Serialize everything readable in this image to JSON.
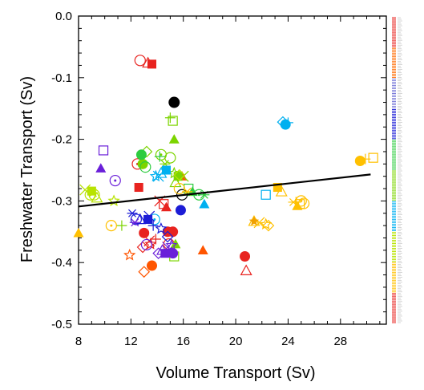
{
  "chart_data": {
    "type": "scatter",
    "xlabel": "Volume Transport (Sv)",
    "ylabel": "Freshwater Transport (Sv)",
    "xlim": [
      8,
      31.5
    ],
    "ylim": [
      -0.5,
      0.0
    ],
    "xticks": [
      "8",
      "12",
      "16",
      "20",
      "24",
      "28"
    ],
    "yticks": [
      "0.0",
      "-0.1",
      "-0.2",
      "-0.3",
      "-0.4",
      "-0.5"
    ],
    "x_tick_values": [
      8,
      12,
      16,
      20,
      24,
      28
    ],
    "y_tick_values": [
      0.0,
      -0.1,
      -0.2,
      -0.3,
      -0.4,
      -0.5
    ],
    "regression_line": {
      "x": [
        8,
        30.3
      ],
      "y": [
        -0.309,
        -0.257
      ],
      "color": "#000000"
    },
    "series": [
      {
        "color": "#e8231f",
        "marker": "mixed",
        "points": [
          [
            12.7,
            -0.072
          ],
          [
            13.3,
            -0.076
          ],
          [
            13.6,
            -0.078
          ],
          [
            13.4,
            -0.365
          ],
          [
            13.5,
            -0.37
          ],
          [
            12.9,
            -0.375
          ],
          [
            13.0,
            -0.352
          ],
          [
            13.9,
            -0.362
          ],
          [
            14.5,
            -0.305
          ],
          [
            14.7,
            -0.31
          ],
          [
            12.5,
            -0.24
          ],
          [
            15.0,
            -0.35
          ],
          [
            14.9,
            -0.37
          ],
          [
            20.8,
            -0.413
          ],
          [
            12.6,
            -0.278
          ],
          [
            14.2,
            -0.3
          ]
        ]
      },
      {
        "color": "#e8231f",
        "marker": "filled-circle",
        "points": [
          [
            20.7,
            -0.39
          ],
          [
            14.8,
            -0.35
          ],
          [
            15.2,
            -0.35
          ]
        ]
      },
      {
        "color": "#ff5500",
        "marker": "filled-triangle",
        "points": [
          [
            17.5,
            -0.38
          ],
          [
            15.9,
            -0.26
          ]
        ]
      },
      {
        "color": "#ff5500",
        "marker": "mixed",
        "points": [
          [
            11.9,
            -0.388
          ],
          [
            13.0,
            -0.415
          ],
          [
            13.6,
            -0.405
          ]
        ]
      },
      {
        "color": "#000000",
        "marker": "filled-circle",
        "points": [
          [
            15.3,
            -0.14
          ]
        ]
      },
      {
        "color": "#000000",
        "marker": "open-circle",
        "points": [
          [
            15.9,
            -0.29
          ]
        ]
      },
      {
        "color": "#7cd400",
        "marker": "mixed",
        "points": [
          [
            15.0,
            -0.165
          ],
          [
            15.2,
            -0.17
          ],
          [
            15.3,
            -0.2
          ],
          [
            14.3,
            -0.225
          ],
          [
            14.6,
            -0.24
          ],
          [
            15.0,
            -0.23
          ],
          [
            15.4,
            -0.27
          ],
          [
            15.6,
            -0.26
          ],
          [
            16.0,
            -0.26
          ],
          [
            15.3,
            -0.255
          ],
          [
            13.2,
            -0.22
          ],
          [
            12.9,
            -0.24
          ],
          [
            11.3,
            -0.34
          ],
          [
            15.3,
            -0.39
          ],
          [
            15.4,
            -0.37
          ]
        ]
      },
      {
        "color": "#b8e300",
        "marker": "mixed",
        "points": [
          [
            8.9,
            -0.29
          ],
          [
            9.1,
            -0.287
          ],
          [
            9.2,
            -0.29
          ],
          [
            9.4,
            -0.295
          ],
          [
            9.0,
            -0.284
          ],
          [
            8.5,
            -0.282
          ],
          [
            10.7,
            -0.3
          ],
          [
            15.7,
            -0.258
          ]
        ]
      },
      {
        "color": "#2ecc40",
        "marker": "mixed",
        "points": [
          [
            12.8,
            -0.225
          ],
          [
            14.2,
            -0.228
          ],
          [
            16.4,
            -0.28
          ],
          [
            16.7,
            -0.285
          ],
          [
            17.2,
            -0.29
          ],
          [
            17.6,
            -0.29
          ],
          [
            13.1,
            -0.245
          ]
        ]
      },
      {
        "color": "#00b0f0",
        "marker": "mixed",
        "points": [
          [
            14.3,
            -0.255
          ],
          [
            14.7,
            -0.25
          ],
          [
            14.1,
            -0.26
          ],
          [
            13.9,
            -0.26
          ],
          [
            23.6,
            -0.172
          ],
          [
            23.8,
            -0.176
          ],
          [
            24.0,
            -0.173
          ],
          [
            22.3,
            -0.29
          ],
          [
            17.6,
            -0.305
          ],
          [
            13.8,
            -0.33
          ]
        ]
      },
      {
        "color": "#1c1cd6",
        "marker": "mixed",
        "points": [
          [
            12.1,
            -0.32
          ],
          [
            12.4,
            -0.33
          ],
          [
            12.7,
            -0.33
          ],
          [
            13.3,
            -0.33
          ],
          [
            13.4,
            -0.325
          ],
          [
            14.3,
            -0.345
          ],
          [
            14.8,
            -0.358
          ],
          [
            15.8,
            -0.315
          ],
          [
            13.7,
            -0.34
          ]
        ]
      },
      {
        "color": "#6a1fd9",
        "marker": "mixed",
        "points": [
          [
            9.9,
            -0.218
          ],
          [
            9.7,
            -0.247
          ],
          [
            10.8,
            -0.267
          ],
          [
            12.3,
            -0.335
          ],
          [
            13.2,
            -0.371
          ],
          [
            14.4,
            -0.38
          ],
          [
            14.6,
            -0.385
          ],
          [
            14.8,
            -0.375
          ],
          [
            15.1,
            -0.372
          ],
          [
            14.1,
            -0.385
          ],
          [
            15.2,
            -0.385
          ]
        ]
      },
      {
        "color": "#ffc000",
        "marker": "mixed",
        "points": [
          [
            24.6,
            -0.302
          ],
          [
            24.9,
            -0.305
          ],
          [
            24.7,
            -0.308
          ],
          [
            25.0,
            -0.3
          ],
          [
            24.4,
            -0.302
          ],
          [
            25.2,
            -0.304
          ],
          [
            23.5,
            -0.285
          ],
          [
            23.2,
            -0.278
          ],
          [
            21.8,
            -0.335
          ],
          [
            22.3,
            -0.338
          ],
          [
            22.5,
            -0.34
          ],
          [
            29.5,
            -0.235
          ],
          [
            29.9,
            -0.232
          ],
          [
            30.5,
            -0.23
          ],
          [
            8.0,
            -0.352
          ],
          [
            10.5,
            -0.34
          ],
          [
            16.3,
            -0.285
          ],
          [
            15.7,
            -0.28
          ],
          [
            21.4,
            -0.333
          ]
        ]
      },
      {
        "color": "#f0a000",
        "marker": "filled-star",
        "points": [
          [
            21.4,
            -0.333
          ]
        ]
      }
    ]
  },
  "side_legend": {
    "color_bands": [
      "#e8231f",
      "#ff6a00",
      "#7d7dd9",
      "#1c1cd6",
      "#2ecc40",
      "#7cd400",
      "#00b0f0",
      "#b8e300",
      "#ffc000",
      "#e8231f"
    ]
  }
}
